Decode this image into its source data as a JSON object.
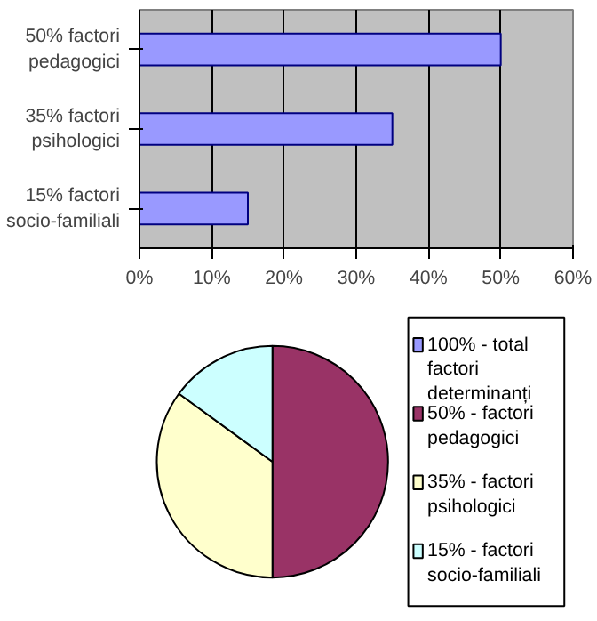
{
  "chart_data": [
    {
      "type": "bar",
      "orientation": "horizontal",
      "categories": [
        "50% factori pedagogici",
        "35% factori psihologici",
        "15% factori socio-familiali"
      ],
      "values": [
        50,
        35,
        15
      ],
      "color": "#9999ff",
      "xlim": [
        0,
        60
      ],
      "xticks": [
        {
          "value": 0,
          "label": "0%"
        },
        {
          "value": 10,
          "label": "10%"
        },
        {
          "value": 20,
          "label": "20%"
        },
        {
          "value": 30,
          "label": "30%"
        },
        {
          "value": 40,
          "label": "40%"
        },
        {
          "value": 50,
          "label": "50%"
        },
        {
          "value": 60,
          "label": "60%"
        }
      ],
      "grid": "x"
    },
    {
      "type": "pie",
      "categories": [
        "100% - total factori determinanți",
        "50% - factori pedagogici",
        "35% - factori psihologici",
        "15% - factori socio-familiali"
      ],
      "values": [
        0,
        50,
        35,
        15
      ],
      "colors": [
        "#9999ff",
        "#993366",
        "#ffffcc",
        "#ccffff"
      ],
      "legend": "right"
    }
  ]
}
